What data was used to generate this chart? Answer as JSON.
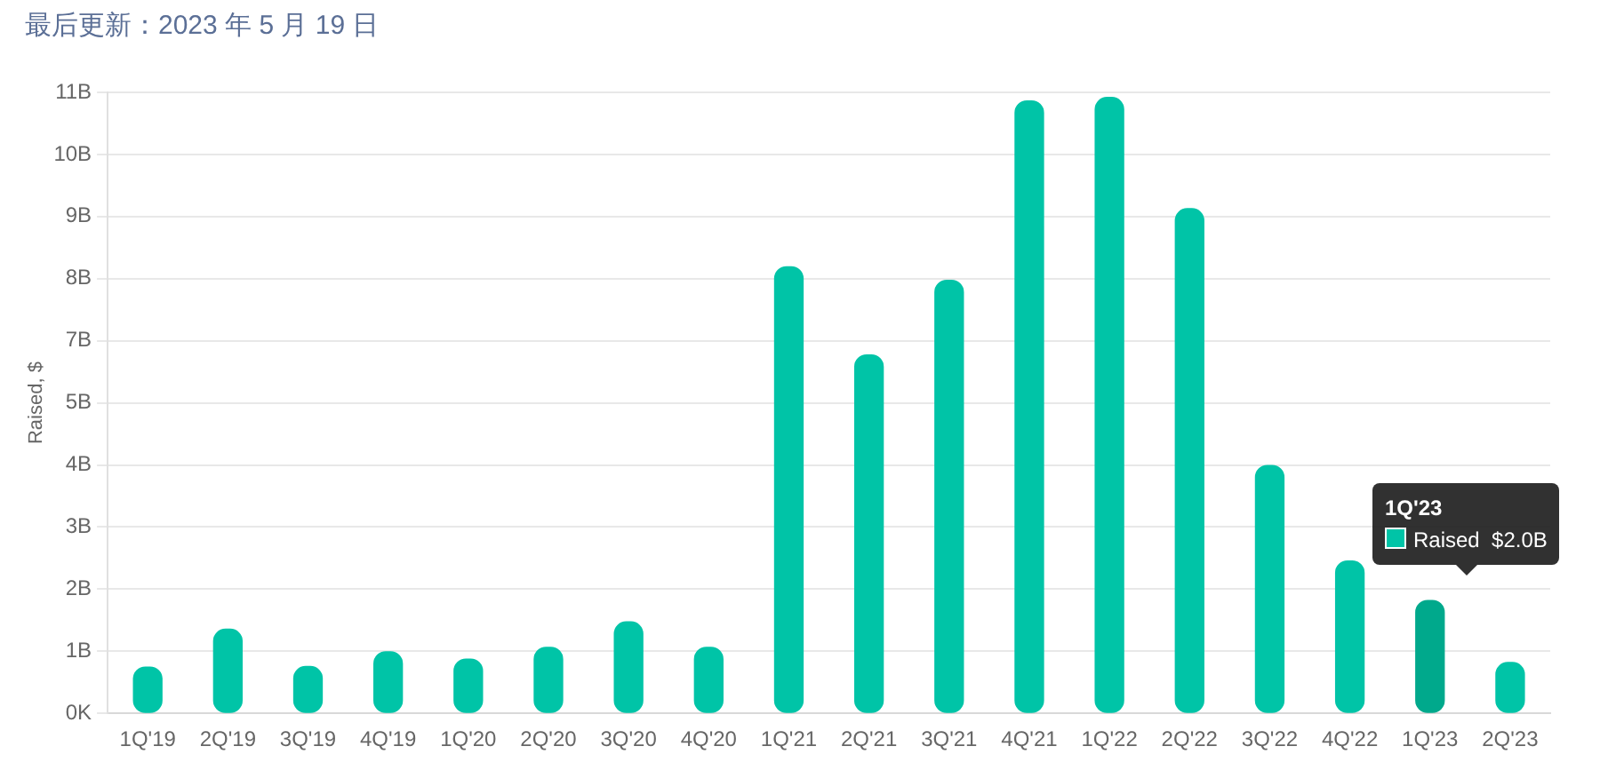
{
  "chart_data": {
    "type": "bar",
    "title": "最后更新：2023 年 5 月 19 日",
    "ylabel": "Raised, $",
    "categories": [
      "1Q'19",
      "2Q'19",
      "3Q'19",
      "4Q'19",
      "1Q'20",
      "2Q'20",
      "3Q'20",
      "4Q'20",
      "1Q'21",
      "2Q'21",
      "3Q'21",
      "4Q'21",
      "1Q'22",
      "2Q'22",
      "3Q'22",
      "4Q'22",
      "1Q'23",
      "2Q'23"
    ],
    "values": [
      0.82,
      1.49,
      0.83,
      1.09,
      0.96,
      1.17,
      1.62,
      1.17,
      7.91,
      6.35,
      7.67,
      10.85,
      10.91,
      8.94,
      4.39,
      2.7,
      2.0,
      0.9
    ],
    "colors": [
      "#00c4a7",
      "#00c4a7",
      "#00c4a7",
      "#00c4a7",
      "#00c4a7",
      "#00c4a7",
      "#00c4a7",
      "#00c4a7",
      "#00c4a7",
      "#00c4a7",
      "#00c4a7",
      "#00c4a7",
      "#00c4a7",
      "#00c4a7",
      "#00c4a7",
      "#00c4a7",
      "#00a98c",
      "#00c4a7"
    ],
    "ylim": [
      0,
      11
    ],
    "yticks": [
      {
        "value": 0,
        "label": "0K"
      },
      {
        "value": 1.1,
        "label": "1B"
      },
      {
        "value": 2.2,
        "label": "2B"
      },
      {
        "value": 3.3,
        "label": "3B"
      },
      {
        "value": 4.4,
        "label": "4B"
      },
      {
        "value": 5.5,
        "label": "5B"
      },
      {
        "value": 6.6,
        "label": "7B"
      },
      {
        "value": 7.7,
        "label": "8B"
      },
      {
        "value": 8.8,
        "label": "9B"
      },
      {
        "value": 9.9,
        "label": "10B"
      },
      {
        "value": 11,
        "label": "11B"
      }
    ],
    "grid": "y",
    "annotations": [
      "1Q'23",
      "Raised  $2.0B"
    ]
  }
}
